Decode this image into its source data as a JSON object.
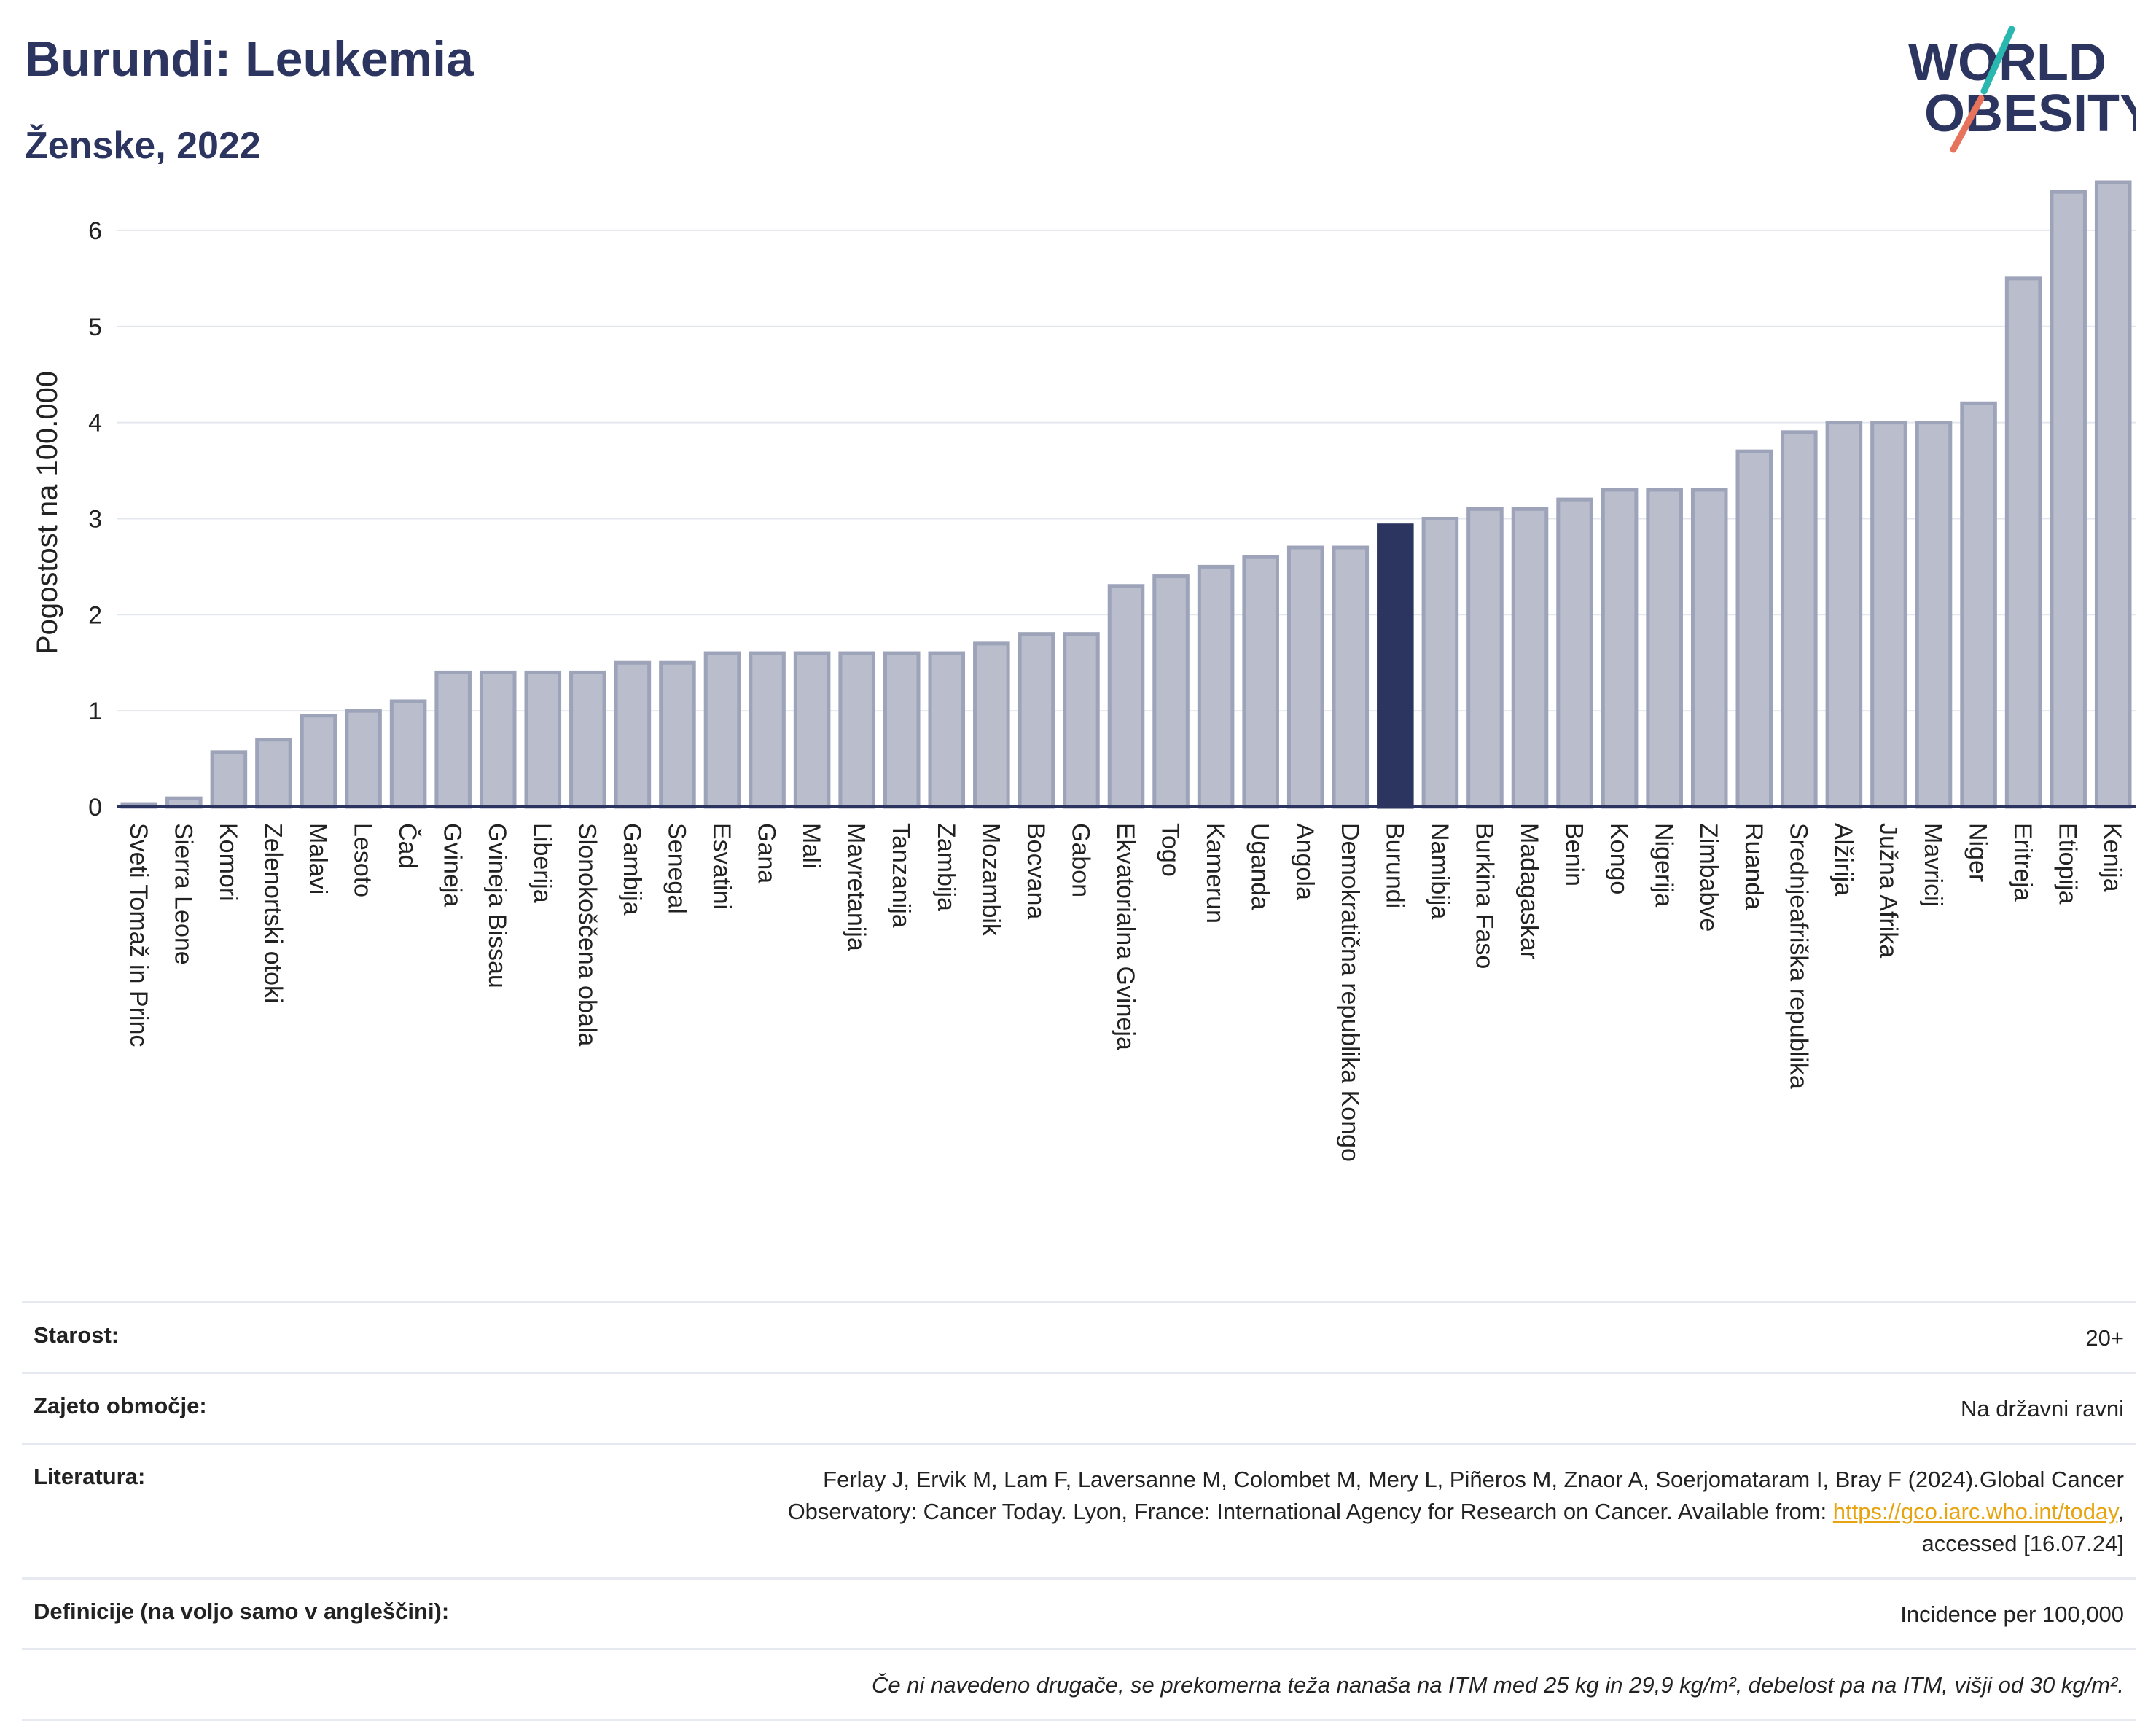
{
  "header": {
    "title": "Burundi: Leukemia",
    "subtitle": "Ženske, 2022",
    "logo_line1": "WORLD",
    "logo_line2": "OBESITY"
  },
  "colors": {
    "bar": "#b9bdcc",
    "bar_stroke": "#9da3b8",
    "highlight": "#2c3560",
    "title": "#2c3560",
    "logo_teal": "#2ab7b0",
    "logo_coral": "#e8735c"
  },
  "chart_data": {
    "type": "bar",
    "title": "Burundi: Leukemia",
    "subtitle": "Ženske, 2022",
    "ylabel": "Pogostost na 100.000",
    "xlabel": "",
    "ylim": [
      0,
      6.5
    ],
    "yticks": [
      0,
      1,
      2,
      3,
      4,
      5,
      6
    ],
    "grid": true,
    "highlight": "Burundi",
    "categories": [
      "Sveti Tomaž in Princ",
      "Sierra Leone",
      "Komori",
      "Zelenortski otoki",
      "Malavi",
      "Lesoto",
      "Čad",
      "Gvineja",
      "Gvineja Bissau",
      "Liberija",
      "Slonokoščena obala",
      "Gambija",
      "Senegal",
      "Esvatini",
      "Gana",
      "Mali",
      "Mavretanija",
      "Tanzanija",
      "Zambija",
      "Mozambik",
      "Bocvana",
      "Gabon",
      "Ekvatorialna Gvineja",
      "Togo",
      "Kamerun",
      "Uganda",
      "Angola",
      "Demokratična republika Kongo",
      "Burundi",
      "Namibija",
      "Burkina Faso",
      "Madagaskar",
      "Benin",
      "Kongo",
      "Nigerija",
      "Zimbabve",
      "Ruanda",
      "Srednjeafriška republika",
      "Alžirija",
      "Južna Afrika",
      "Mavricij",
      "Niger",
      "Eritreja",
      "Etiopija",
      "Kenija"
    ],
    "values": [
      0.03,
      0.09,
      0.57,
      0.7,
      0.95,
      1.0,
      1.1,
      1.4,
      1.4,
      1.4,
      1.4,
      1.5,
      1.5,
      1.6,
      1.6,
      1.6,
      1.6,
      1.6,
      1.6,
      1.7,
      1.8,
      1.8,
      2.3,
      2.4,
      2.5,
      2.6,
      2.7,
      2.7,
      2.93,
      3.0,
      3.1,
      3.1,
      3.2,
      3.3,
      3.3,
      3.3,
      3.7,
      3.9,
      4.0,
      4.0,
      4.0,
      4.2,
      5.5,
      6.4,
      6.5
    ]
  },
  "info": {
    "age_label": "Starost:",
    "age_value": "20+",
    "coverage_label": "Zajeto območje:",
    "coverage_value": "Na državni ravni",
    "lit_label": "Literatura:",
    "lit_line1": "Ferlay J, Ervik M, Lam F, Laversanne M, Colombet M, Mery L, Piñeros M, Znaor A, Soerjomataram I, Bray F (2024).Global Cancer",
    "lit_line2": "Observatory: Cancer Today. Lyon, France: International Agency for Research on Cancer. Available from: ",
    "lit_link": "https://gco.iarc.who.int/today",
    "lit_line2_end": ",",
    "lit_line3": "accessed [16.07.24]",
    "def_label": "Definicije (na voljo samo v angleščini):",
    "def_value": "Incidence per 100,000",
    "note": "Če ni navedeno drugače, se prekomerna teža nanaša na ITM med 25 kg in 29,9 kg/m², debelost pa na ITM, višji od 30 kg/m²."
  }
}
